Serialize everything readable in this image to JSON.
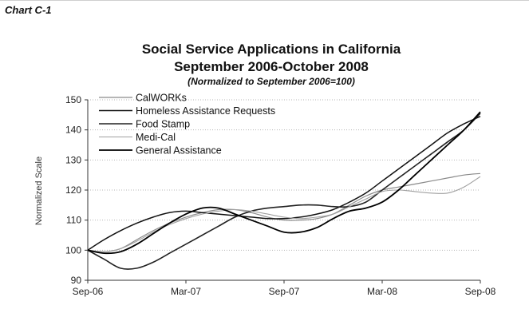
{
  "chart_label": "Chart C-1",
  "chart_data": {
    "type": "line",
    "title": "Social Service Applications in California",
    "title_line2": "September 2006-October 2008",
    "subtitle": "(Normalized to September 2006=100)",
    "xlabel": "",
    "ylabel": "Normalized Scale",
    "x_ticks": [
      "Sep-06",
      "Mar-07",
      "Sep-07",
      "Mar-08",
      "Sep-08"
    ],
    "x_tick_positions": [
      0,
      6,
      12,
      18,
      24
    ],
    "ylim": [
      90,
      150
    ],
    "y_ticks": [
      90,
      100,
      110,
      120,
      130,
      140,
      150
    ],
    "grid": "dotted horizontal",
    "legend_position": "top-left",
    "x": [
      0,
      1,
      2,
      3,
      4,
      5,
      6,
      7,
      8,
      9,
      10,
      11,
      12,
      13,
      14,
      15,
      16,
      17,
      18,
      19,
      20,
      21,
      22,
      23,
      24
    ],
    "series": [
      {
        "name": "CalWORKs",
        "color": "#8a8a8a",
        "width": 1.2,
        "values": [
          100,
          99.5,
          100.5,
          103.5,
          106.5,
          109,
          111,
          112.5,
          113.5,
          113.5,
          112.5,
          111,
          110,
          110,
          110.5,
          112,
          115,
          118,
          120,
          121,
          122,
          123,
          124,
          125,
          125.5
        ]
      },
      {
        "name": "Homeless Assistance Requests",
        "color": "#111111",
        "width": 1.5,
        "values": [
          100,
          103.5,
          106.5,
          109,
          111,
          112.5,
          113,
          112.5,
          112,
          111.5,
          111,
          110.5,
          110.5,
          111,
          112,
          113.5,
          116,
          119,
          123,
          127,
          131,
          135,
          139,
          142,
          144.5
        ]
      },
      {
        "name": "Food Stamp",
        "color": "#222222",
        "width": 1.6,
        "values": [
          100,
          97,
          94,
          94,
          96,
          99,
          102,
          105,
          108,
          111,
          113,
          114,
          114.5,
          115,
          115,
          114.5,
          114.5,
          116,
          120,
          124,
          128,
          132,
          136,
          140,
          145.5
        ]
      },
      {
        "name": "Medi-Cal",
        "color": "#a0a0a0",
        "width": 1.1,
        "values": [
          100,
          99.5,
          100.5,
          103,
          106,
          108.5,
          110.5,
          112,
          113,
          113.5,
          113,
          112,
          111,
          110.5,
          111,
          112,
          114.5,
          117,
          119.5,
          120,
          119.5,
          119,
          119,
          121,
          124.5
        ]
      },
      {
        "name": "General Assistance",
        "color": "#000000",
        "width": 1.8,
        "values": [
          100,
          99,
          99.5,
          102,
          105.5,
          109,
          112,
          114,
          114,
          112,
          110,
          108,
          106,
          106,
          107.5,
          110.5,
          113,
          114,
          116,
          120,
          125,
          130,
          135,
          140,
          146
        ]
      }
    ]
  }
}
